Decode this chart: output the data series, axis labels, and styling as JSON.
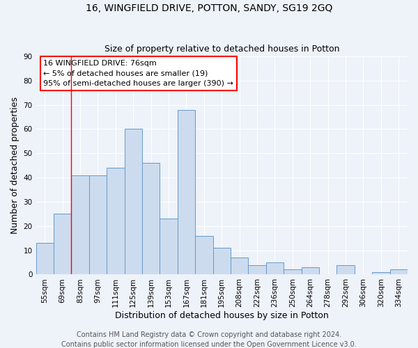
{
  "title": "16, WINGFIELD DRIVE, POTTON, SANDY, SG19 2GQ",
  "subtitle": "Size of property relative to detached houses in Potton",
  "xlabel": "Distribution of detached houses by size in Potton",
  "ylabel": "Number of detached properties",
  "bar_labels": [
    "55sqm",
    "69sqm",
    "83sqm",
    "97sqm",
    "111sqm",
    "125sqm",
    "139sqm",
    "153sqm",
    "167sqm",
    "181sqm",
    "195sqm",
    "208sqm",
    "222sqm",
    "236sqm",
    "250sqm",
    "264sqm",
    "278sqm",
    "292sqm",
    "306sqm",
    "320sqm",
    "334sqm"
  ],
  "bar_values": [
    13,
    25,
    41,
    41,
    44,
    60,
    46,
    23,
    68,
    16,
    11,
    7,
    4,
    5,
    2,
    3,
    0,
    4,
    0,
    1,
    2
  ],
  "bar_color": "#ccdcee",
  "bar_edge_color": "#6699cc",
  "ylim": [
    0,
    90
  ],
  "yticks": [
    0,
    10,
    20,
    30,
    40,
    50,
    60,
    70,
    80,
    90
  ],
  "red_line_x": 1.5,
  "annotation_title": "16 WINGFIELD DRIVE: 76sqm",
  "annotation_line1": "← 5% of detached houses are smaller (19)",
  "annotation_line2": "95% of semi-detached houses are larger (390) →",
  "footer1": "Contains HM Land Registry data © Crown copyright and database right 2024.",
  "footer2": "Contains public sector information licensed under the Open Government Licence v3.0.",
  "background_color": "#eef2f9",
  "grid_color": "#ffffff",
  "title_fontsize": 10,
  "subtitle_fontsize": 9,
  "axis_label_fontsize": 9,
  "tick_fontsize": 7.5,
  "annotation_fontsize": 8,
  "footer_fontsize": 7
}
